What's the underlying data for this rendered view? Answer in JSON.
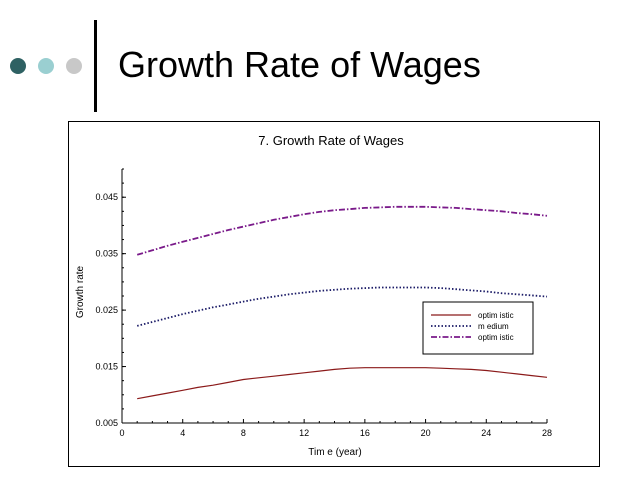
{
  "slide": {
    "title": "Growth Rate of Wages",
    "dot_colors": [
      "#2e6163",
      "#9acfd1",
      "#c8c8c8"
    ]
  },
  "chart_data": {
    "type": "line",
    "title": "7.  Growth Rate of Wages",
    "xlabel": "Tim e (year)",
    "ylabel": "Growth rate",
    "xlim": [
      0,
      28
    ],
    "ylim": [
      0.005,
      0.05
    ],
    "xticks": [
      0,
      4,
      8,
      12,
      16,
      20,
      24,
      28
    ],
    "yticks": [
      0.005,
      0.015,
      0.025,
      0.035,
      0.045
    ],
    "ytick_labels": [
      "0.005",
      "0.015",
      "0.025",
      "0.035",
      "0.045"
    ],
    "grid": false,
    "legend_position": "right-center",
    "series": [
      {
        "name": "optim istic",
        "color": "#8b1a1a",
        "style": "solid",
        "x": [
          1,
          2,
          3,
          4,
          5,
          6,
          7,
          8,
          9,
          10,
          11,
          12,
          13,
          14,
          15,
          16,
          17,
          18,
          19,
          20,
          21,
          22,
          23,
          24,
          25,
          26,
          27,
          28
        ],
        "y": [
          0.0093,
          0.0098,
          0.0103,
          0.0108,
          0.0113,
          0.0117,
          0.0122,
          0.0127,
          0.013,
          0.0133,
          0.0136,
          0.0139,
          0.0142,
          0.0145,
          0.0147,
          0.0148,
          0.0148,
          0.0148,
          0.0148,
          0.0148,
          0.0147,
          0.0146,
          0.0145,
          0.0143,
          0.014,
          0.0137,
          0.0134,
          0.0131
        ]
      },
      {
        "name": "m edium",
        "color": "#1a1a66",
        "style": "dotted",
        "x": [
          1,
          2,
          3,
          4,
          5,
          6,
          7,
          8,
          9,
          10,
          11,
          12,
          13,
          14,
          15,
          16,
          17,
          18,
          19,
          20,
          21,
          22,
          23,
          24,
          25,
          26,
          27,
          28
        ],
        "y": [
          0.0222,
          0.0229,
          0.0236,
          0.0243,
          0.0249,
          0.0255,
          0.026,
          0.0265,
          0.027,
          0.0274,
          0.0278,
          0.0281,
          0.0284,
          0.0286,
          0.0288,
          0.0289,
          0.029,
          0.029,
          0.029,
          0.029,
          0.0289,
          0.0287,
          0.0285,
          0.0283,
          0.028,
          0.0278,
          0.0276,
          0.0274
        ]
      },
      {
        "name": "optim istic",
        "color": "#7a1a8a",
        "style": "dashdot",
        "x": [
          1,
          2,
          3,
          4,
          5,
          6,
          7,
          8,
          9,
          10,
          11,
          12,
          13,
          14,
          15,
          16,
          17,
          18,
          19,
          20,
          21,
          22,
          23,
          24,
          25,
          26,
          27,
          28
        ],
        "y": [
          0.0348,
          0.0356,
          0.0364,
          0.0371,
          0.0378,
          0.0385,
          0.0392,
          0.0398,
          0.0404,
          0.041,
          0.0415,
          0.042,
          0.0424,
          0.0427,
          0.0429,
          0.0431,
          0.0432,
          0.0433,
          0.0433,
          0.0433,
          0.0432,
          0.0431,
          0.0429,
          0.0427,
          0.0425,
          0.0422,
          0.042,
          0.0417
        ]
      }
    ]
  }
}
